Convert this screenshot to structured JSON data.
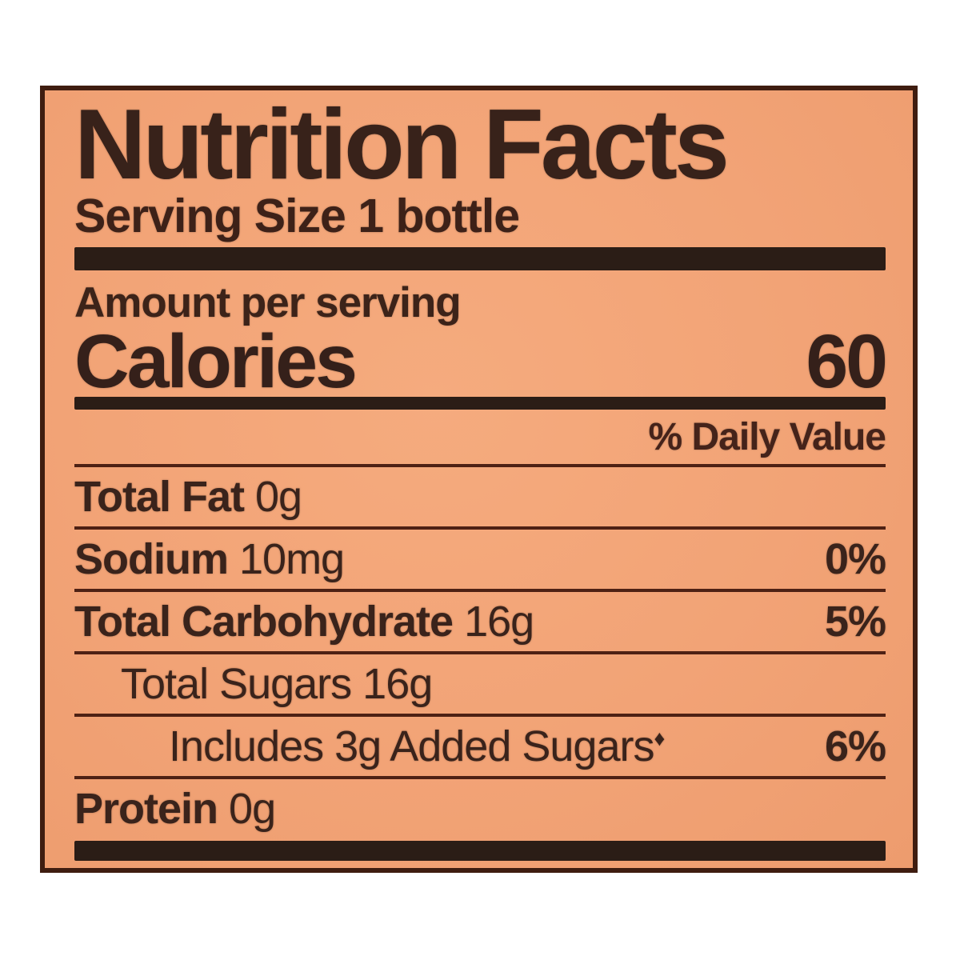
{
  "label": {
    "title": "Nutrition Facts",
    "serving_size": "Serving Size 1 bottle",
    "amount_per_serving": "Amount per serving",
    "calories_label": "Calories",
    "calories_value": "60",
    "daily_value_header": "% Daily Value",
    "rows": [
      {
        "text_bold": "Total Fat",
        "text_regular": " 0g",
        "sup": "",
        "dv": "",
        "indent": 0
      },
      {
        "text_bold": "Sodium",
        "text_regular": " 10mg",
        "sup": "",
        "dv": "0%",
        "indent": 0
      },
      {
        "text_bold": "Total Carbohydrate",
        "text_regular": " 16g",
        "sup": "",
        "dv": "5%",
        "indent": 0
      },
      {
        "text_bold": "",
        "text_regular": "Total Sugars 16g",
        "sup": "",
        "dv": "",
        "indent": 1
      },
      {
        "text_bold": "",
        "text_regular": "Includes 3g Added Sugars",
        "sup": "♦",
        "dv": "6%",
        "indent": 2
      },
      {
        "text_bold": "Protein",
        "text_regular": " 0g",
        "sup": "",
        "dv": "",
        "indent": 0
      }
    ],
    "colors": {
      "label_background": "#f2a376",
      "text_ink": "#3a231b",
      "thin_rule": "#4e2114",
      "thick_bar": "#2b1d16",
      "border": "#3f1d10",
      "page_background": "#ffffff"
    }
  }
}
